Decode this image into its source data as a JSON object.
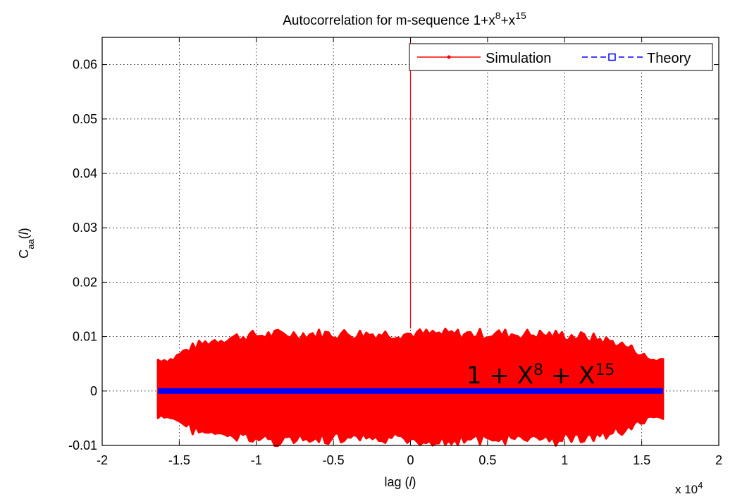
{
  "chart_data": {
    "type": "line",
    "title_prefix": "Autocorrelation for m-sequence 1+x",
    "title_exp1": "8",
    "title_mid": "+x",
    "title_exp2": "15",
    "xlabel": "lag (",
    "xlabel_var": "l",
    "xlabel_close": ")",
    "ylabel_main": "C",
    "ylabel_sub": "aa",
    "ylabel_arg_open": "(",
    "ylabel_var": "l",
    "ylabel_arg_close": ")",
    "x_multiplier_text": "x 10",
    "x_multiplier_exp": "4",
    "xlim": [
      -2,
      2
    ],
    "ylim": [
      -0.01,
      0.065
    ],
    "x_ticks": [
      -2,
      -1.5,
      -1,
      -0.5,
      0,
      0.5,
      1,
      1.5,
      2
    ],
    "x_tick_labels": [
      "-2",
      "-1.5",
      "-1",
      "-0.5",
      "0",
      "0.5",
      "1",
      "1.5",
      "2"
    ],
    "y_ticks": [
      -0.01,
      0,
      0.01,
      0.02,
      0.03,
      0.04,
      0.05,
      0.06
    ],
    "y_tick_labels": [
      "-0.01",
      "0",
      "0.01",
      "0.02",
      "0.03",
      "0.04",
      "0.05",
      "0.06"
    ],
    "grid": true,
    "legend_position": "top-right",
    "series": [
      {
        "name": "Simulation",
        "color": "#ff0000",
        "style": "solid line with point markers",
        "x_range": [
          -1.6383,
          1.6383
        ],
        "peak": {
          "x": 0,
          "y": 1.0
        },
        "noise_envelope_at_center": [
          -0.0105,
          0.0115
        ]
      },
      {
        "name": "Theory",
        "color": "#0000ff",
        "style": "dashed line with square markers",
        "x_range": [
          -1.6383,
          1.6383
        ],
        "y_value": 0
      }
    ],
    "annotation": {
      "base": "1 + X",
      "exp1": "8",
      "mid": " + X",
      "exp2": "15",
      "x": 0.4,
      "y": 0.001
    }
  }
}
